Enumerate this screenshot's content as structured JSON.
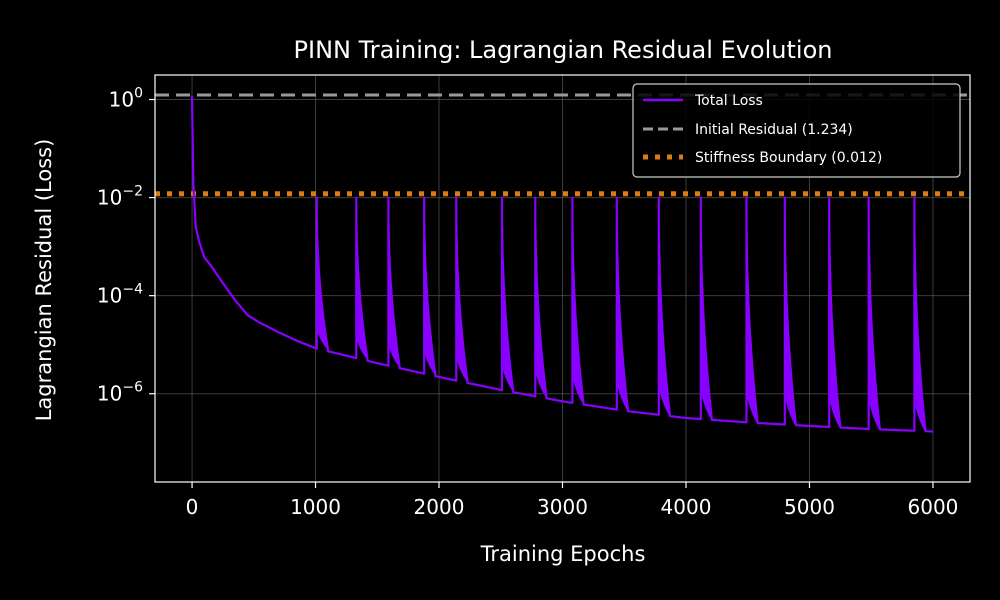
{
  "colors": {
    "background": "#000000",
    "axes_frame": "#ffffff",
    "grid": "#555555",
    "total_loss": "#8800ff",
    "initial_residual": "#999999",
    "stiffness_boundary": "#d97b16"
  },
  "chart_data": {
    "type": "line",
    "title": "PINN Training: Lagrangian Residual Evolution",
    "xlabel": "Training Epochs",
    "ylabel": "Lagrangian Residual (Loss)",
    "xlim": [
      -300,
      6300
    ],
    "ylim_log10": [
      -7.8,
      0.5
    ],
    "yscale": "log",
    "grid": true,
    "legend_position": "top-right",
    "x_ticks": [
      0,
      1000,
      2000,
      3000,
      4000,
      5000,
      6000
    ],
    "y_tick_exponents": [
      0,
      -2,
      -4,
      -6
    ],
    "y_tick_base": "10",
    "series": [
      {
        "name": "Total Loss",
        "style": "solid",
        "base_curve": [
          [
            0,
            1.2
          ],
          [
            10,
            0.02
          ],
          [
            30,
            0.0025
          ],
          [
            60,
            0.0012
          ],
          [
            100,
            0.0006
          ],
          [
            150,
            0.00042
          ],
          [
            250,
            0.00018
          ],
          [
            350,
            8e-05
          ],
          [
            450,
            4e-05
          ],
          [
            550,
            2.8e-05
          ],
          [
            700,
            1.8e-05
          ],
          [
            850,
            1.2e-05
          ],
          [
            1000,
            8.5e-06
          ],
          [
            1500,
            4.2e-06
          ],
          [
            2000,
            2.2e-06
          ],
          [
            2500,
            1.2e-06
          ],
          [
            3000,
            7e-07
          ],
          [
            3500,
            4.5e-07
          ],
          [
            4000,
            3.2e-07
          ],
          [
            4500,
            2.6e-07
          ],
          [
            5000,
            2.2e-07
          ],
          [
            5500,
            1.9e-07
          ],
          [
            6000,
            1.7e-07
          ]
        ],
        "spike_epochs": [
          1010,
          1330,
          1590,
          1880,
          2140,
          2510,
          2780,
          3080,
          3440,
          3780,
          4120,
          4490,
          4800,
          5160,
          5480,
          5850
        ],
        "spike_peak": 0.01
      },
      {
        "name": "Initial Residual (1.234)",
        "style": "dashed",
        "value": 1.234
      },
      {
        "name": "Stiffness Boundary (0.012)",
        "style": "dotted",
        "value": 0.012
      }
    ]
  }
}
